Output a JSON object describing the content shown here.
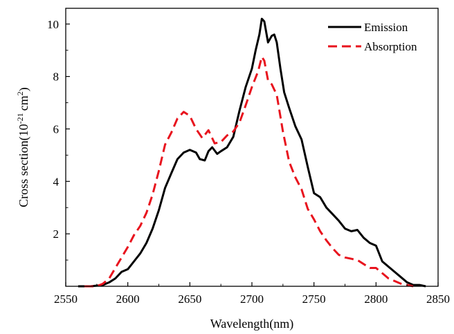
{
  "chart_data": {
    "type": "line",
    "title": "",
    "xlabel": "Wavelength(nm)",
    "ylabel": {
      "base": "Cross section(10",
      "sup1": "-21",
      "mid": "cm",
      "sup2": "2",
      "end": ")"
    },
    "xlim": [
      2550,
      2850
    ],
    "ylim": [
      0,
      10.6
    ],
    "xticks": [
      2550,
      2600,
      2650,
      2700,
      2750,
      2800,
      2850
    ],
    "yticks": [
      2,
      4,
      6,
      8,
      10
    ],
    "grid": false,
    "legend": "top-right",
    "series": [
      {
        "name": "Emission",
        "color": "#000000",
        "dash": "solid",
        "points": [
          [
            2560,
            0.0
          ],
          [
            2570,
            0.0
          ],
          [
            2580,
            0.05
          ],
          [
            2585,
            0.15
          ],
          [
            2590,
            0.3
          ],
          [
            2595,
            0.55
          ],
          [
            2600,
            0.65
          ],
          [
            2605,
            0.95
          ],
          [
            2610,
            1.25
          ],
          [
            2615,
            1.65
          ],
          [
            2620,
            2.2
          ],
          [
            2625,
            2.9
          ],
          [
            2630,
            3.75
          ],
          [
            2635,
            4.3
          ],
          [
            2640,
            4.85
          ],
          [
            2645,
            5.1
          ],
          [
            2650,
            5.2
          ],
          [
            2655,
            5.1
          ],
          [
            2658,
            4.85
          ],
          [
            2662,
            4.8
          ],
          [
            2665,
            5.15
          ],
          [
            2668,
            5.3
          ],
          [
            2672,
            5.05
          ],
          [
            2675,
            5.15
          ],
          [
            2680,
            5.3
          ],
          [
            2685,
            5.7
          ],
          [
            2690,
            6.7
          ],
          [
            2695,
            7.6
          ],
          [
            2700,
            8.3
          ],
          [
            2703,
            9.0
          ],
          [
            2706,
            9.6
          ],
          [
            2708,
            10.2
          ],
          [
            2710,
            10.1
          ],
          [
            2713,
            9.3
          ],
          [
            2716,
            9.55
          ],
          [
            2718,
            9.6
          ],
          [
            2720,
            9.3
          ],
          [
            2723,
            8.3
          ],
          [
            2726,
            7.4
          ],
          [
            2730,
            6.8
          ],
          [
            2735,
            6.1
          ],
          [
            2740,
            5.6
          ],
          [
            2745,
            4.55
          ],
          [
            2750,
            3.55
          ],
          [
            2755,
            3.4
          ],
          [
            2760,
            3.0
          ],
          [
            2765,
            2.75
          ],
          [
            2770,
            2.5
          ],
          [
            2775,
            2.2
          ],
          [
            2780,
            2.1
          ],
          [
            2785,
            2.15
          ],
          [
            2790,
            1.85
          ],
          [
            2795,
            1.65
          ],
          [
            2800,
            1.55
          ],
          [
            2805,
            0.95
          ],
          [
            2810,
            0.75
          ],
          [
            2815,
            0.55
          ],
          [
            2820,
            0.35
          ],
          [
            2825,
            0.15
          ],
          [
            2830,
            0.05
          ],
          [
            2835,
            0.05
          ],
          [
            2840,
            0.0
          ]
        ]
      },
      {
        "name": "Absorption",
        "color": "#e8141e",
        "dash": "dashed",
        "points": [
          [
            2565,
            0.0
          ],
          [
            2575,
            0.0
          ],
          [
            2580,
            0.1
          ],
          [
            2585,
            0.3
          ],
          [
            2590,
            0.7
          ],
          [
            2595,
            1.1
          ],
          [
            2600,
            1.5
          ],
          [
            2605,
            1.95
          ],
          [
            2610,
            2.3
          ],
          [
            2615,
            2.8
          ],
          [
            2620,
            3.5
          ],
          [
            2625,
            4.4
          ],
          [
            2630,
            5.4
          ],
          [
            2635,
            5.85
          ],
          [
            2640,
            6.4
          ],
          [
            2645,
            6.65
          ],
          [
            2650,
            6.5
          ],
          [
            2655,
            6.0
          ],
          [
            2660,
            5.65
          ],
          [
            2665,
            5.95
          ],
          [
            2670,
            5.45
          ],
          [
            2675,
            5.5
          ],
          [
            2680,
            5.75
          ],
          [
            2685,
            5.9
          ],
          [
            2690,
            6.25
          ],
          [
            2695,
            6.9
          ],
          [
            2700,
            7.6
          ],
          [
            2705,
            8.2
          ],
          [
            2708,
            8.75
          ],
          [
            2710,
            8.6
          ],
          [
            2713,
            7.85
          ],
          [
            2716,
            7.7
          ],
          [
            2720,
            7.3
          ],
          [
            2725,
            5.9
          ],
          [
            2730,
            4.75
          ],
          [
            2735,
            4.15
          ],
          [
            2740,
            3.7
          ],
          [
            2745,
            2.95
          ],
          [
            2750,
            2.55
          ],
          [
            2755,
            2.1
          ],
          [
            2760,
            1.75
          ],
          [
            2765,
            1.45
          ],
          [
            2770,
            1.2
          ],
          [
            2775,
            1.1
          ],
          [
            2780,
            1.05
          ],
          [
            2785,
            1.0
          ],
          [
            2790,
            0.85
          ],
          [
            2795,
            0.7
          ],
          [
            2800,
            0.7
          ],
          [
            2805,
            0.5
          ],
          [
            2810,
            0.3
          ],
          [
            2815,
            0.2
          ],
          [
            2820,
            0.1
          ],
          [
            2825,
            0.05
          ],
          [
            2830,
            0.0
          ]
        ]
      }
    ]
  }
}
